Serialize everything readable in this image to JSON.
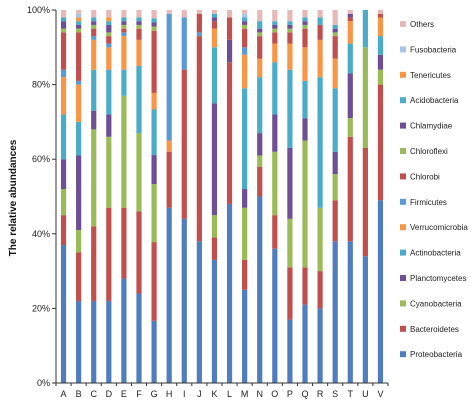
{
  "chart_data": {
    "type": "bar",
    "stacked": true,
    "normalized": true,
    "title": "",
    "xlabel": "",
    "ylabel": "The relative abundances",
    "ylim": [
      0,
      100
    ],
    "yticks": [
      "0%",
      "20%",
      "40%",
      "60%",
      "80%",
      "100%"
    ],
    "grid": false,
    "legend_position": "right",
    "categories": [
      "A",
      "B",
      "C",
      "D",
      "E",
      "F",
      "G",
      "H",
      "I",
      "J",
      "K",
      "L",
      "M",
      "N",
      "O",
      "P",
      "Q",
      "R",
      "S",
      "T",
      "U",
      "V"
    ],
    "series": [
      {
        "name": "Proteobacteria",
        "color": "#4f7dbd",
        "values": [
          37,
          22,
          22,
          22,
          28,
          24,
          15,
          47,
          44,
          38,
          33,
          48,
          25,
          50,
          36,
          17,
          21,
          20,
          38,
          38,
          34,
          49
        ]
      },
      {
        "name": "Bacteroidetes",
        "color": "#c0504d",
        "values": [
          8,
          13,
          20,
          25,
          19,
          22,
          19,
          15,
          40,
          55,
          6,
          38,
          8,
          8,
          9,
          14,
          10,
          10,
          11,
          28,
          29,
          31
        ]
      },
      {
        "name": "Cyanobacteria",
        "color": "#9bbb59",
        "values": [
          7,
          6,
          26,
          19,
          30,
          21,
          14,
          0,
          0,
          0,
          6,
          0,
          14,
          3,
          17,
          13,
          34,
          17,
          7,
          5,
          27,
          4
        ]
      },
      {
        "name": "Planctomycetes",
        "color": "#6e4f93",
        "values": [
          8,
          20,
          5,
          6,
          0,
          0,
          7,
          0,
          0,
          0,
          30,
          6,
          5,
          6,
          10,
          19,
          6,
          0,
          6,
          12,
          0,
          4
        ]
      },
      {
        "name": "Actinobacteria",
        "color": "#4aacc6",
        "values": [
          12,
          9,
          11,
          12,
          7,
          18,
          11,
          0,
          0,
          0,
          15,
          0,
          27,
          15,
          14,
          21,
          10,
          35,
          17,
          8,
          10,
          5
        ]
      },
      {
        "name": "Verrucomicrobia",
        "color": "#f79646",
        "values": [
          10,
          10,
          8,
          6,
          9,
          7,
          4,
          3,
          0,
          0,
          5,
          0,
          9,
          5,
          5,
          7,
          9,
          10,
          8,
          6,
          0,
          5
        ]
      },
      {
        "name": "Firmicutes",
        "color": "#5b9bd5",
        "values": [
          2,
          1,
          1,
          1,
          1,
          0,
          0,
          34,
          14,
          1,
          0,
          0,
          2,
          0,
          0,
          0,
          0,
          0,
          0,
          0,
          0,
          0
        ]
      },
      {
        "name": "Chlorobi",
        "color": "#c0504d",
        "values": [
          10,
          13,
          2,
          2,
          1,
          3,
          15,
          0,
          0,
          5,
          2,
          6,
          5,
          6,
          3,
          3,
          5,
          4,
          6,
          1,
          0,
          1
        ]
      },
      {
        "name": "Chloroflexi",
        "color": "#9bbb59",
        "values": [
          1,
          1,
          1,
          1,
          1,
          1,
          1,
          0,
          0,
          0,
          0,
          0,
          1,
          1,
          1,
          1,
          1,
          0,
          1,
          0,
          0,
          0
        ]
      },
      {
        "name": "Chlamydiae",
        "color": "#6e4f93",
        "values": [
          2,
          1,
          1,
          2,
          1,
          1,
          1,
          0,
          0,
          0,
          1,
          0,
          1,
          1,
          1,
          1,
          1,
          0,
          1,
          1,
          0,
          0
        ]
      },
      {
        "name": "Acidobacteria",
        "color": "#4aacc6",
        "values": [
          1,
          1,
          1,
          1,
          1,
          1,
          1,
          0,
          0,
          0,
          1,
          0,
          1,
          2,
          1,
          1,
          1,
          2,
          1,
          0,
          0,
          0
        ]
      },
      {
        "name": "Tenericutes",
        "color": "#f79646",
        "values": [
          0,
          1,
          0,
          1,
          0,
          0,
          0,
          0,
          0,
          0,
          0,
          0,
          0,
          0,
          0,
          0,
          0,
          0,
          0,
          0,
          0,
          0
        ]
      },
      {
        "name": "Fusobacteria",
        "color": "#a9c4e6",
        "values": [
          0,
          1,
          0,
          0,
          0,
          0,
          0,
          0,
          0,
          0,
          0,
          0,
          1,
          0,
          0,
          0,
          0,
          0,
          0,
          0,
          0,
          0
        ]
      },
      {
        "name": "Others",
        "color": "#e6b9b8",
        "values": [
          2,
          1,
          2,
          2,
          2,
          2,
          2,
          1,
          2,
          1,
          1,
          2,
          1,
          3,
          3,
          3,
          2,
          2,
          4,
          1,
          0,
          1
        ]
      }
    ]
  }
}
